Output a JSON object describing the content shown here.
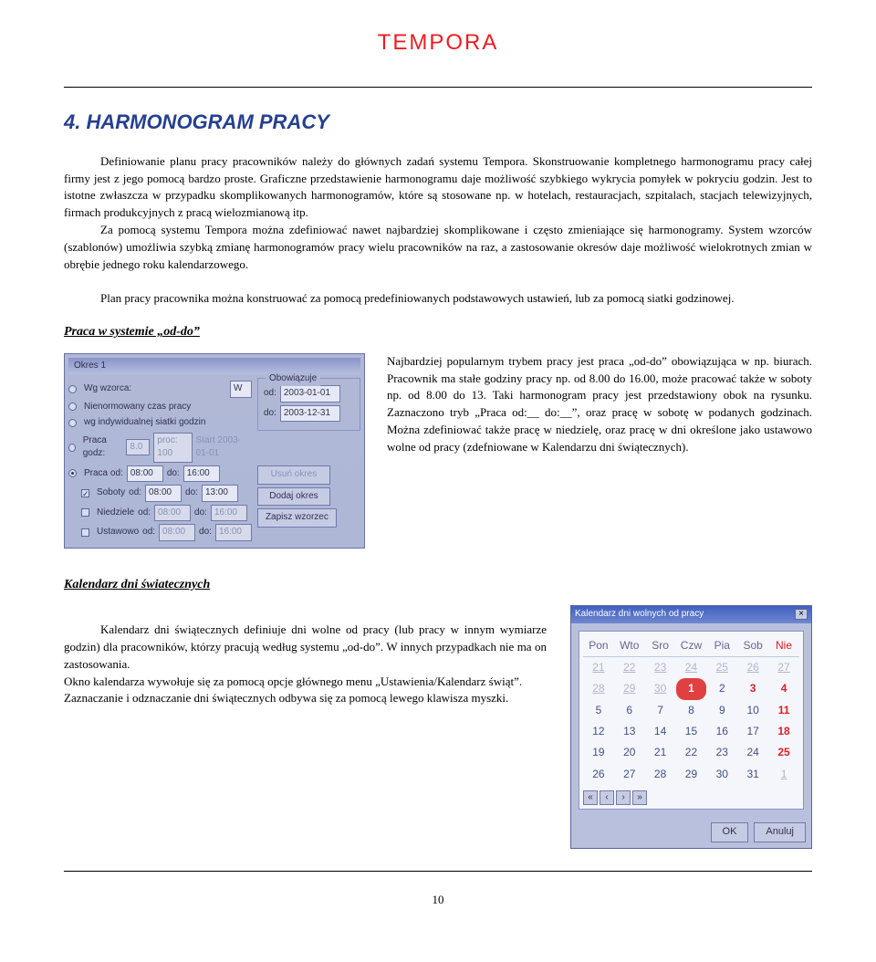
{
  "doc_title": "TEMPORA",
  "section_title": "4. HARMONOGRAM PRACY",
  "paragraphs": {
    "p1a": "Definiowanie planu pracy pracowników  należy do głównych zadań systemu Tempora. Skonstruowanie kompletnego harmonogramu pracy całej firmy jest z jego pomocą bardzo proste. Graficzne przedstawienie harmonogramu daje możliwość szybkiego wykrycia pomyłek w  pokryciu godzin. Jest to istotne zwłaszcza w przypadku skomplikowanych harmonogramów, które są stosowane np. w hotelach, restauracjach, szpitalach, stacjach telewizyjnych, firmach produkcyjnych z pracą wielozmianową itp.",
    "p1b": "Za pomocą systemu Tempora można zdefiniować nawet najbardziej skomplikowane i często zmieniające się harmonogramy. System wzorców (szablonów) umożliwia szybką zmianę harmonogramów pracy wielu pracowników na raz, a zastosowanie okresów daje możliwość wielokrotnych zmian w obrębie jednego roku kalendarzowego.",
    "p1c": "Plan pracy pracownika można konstruować za pomocą predefiniowanych podstawowych ustawień, lub za pomocą siatki godzinowej."
  },
  "subheads": {
    "s1": "Praca w systemie „od-do”",
    "s2": "Kalendarz dni światecznych"
  },
  "right_text": "Najbardziej popularnym trybem pracy jest praca „od-do” obowiązująca w np. biurach. Pracownik ma stałe godziny pracy np. od 8.00 do 16.00, może pracować także w soboty np. od 8.00 do 13. Taki harmonogram pracy jest przedstawiony obok na rysunku. Zaznaczono tryb „Praca od:__ do:__”, oraz pracę w sobotę w podanych godzinach. Można zdefiniować także pracę w niedzielę, oraz pracę w dni określone jako ustawowo wolne od pracy (zdefniowane w Kalendarzu dni świątecznych).",
  "cal_text": {
    "p1": "Kalendarz dni świątecznych definiuje dni wolne od pracy (lub pracy w innym wymiarze godzin) dla pracowników, którzy pracują według systemu „od-do”. W innych przypadkach nie ma on zastosowania.",
    "p2": "Okno kalendarza wywołuje się za pomocą opcje głównego menu „Ustawienia/Kalendarz świąt”.",
    "p3": "Zaznaczanie i odznaczanie dni świątecznych odbywa się za pomocą lewego klawisza myszki."
  },
  "page_num": "10",
  "panel": {
    "title": "Okres 1",
    "group_label": "Obowiązuje",
    "opt1": "Wg wzorca:",
    "opt1_select": "W",
    "opt2": "Nienormowany czas pracy",
    "opt3": "wg indywidualnej siatki godzin",
    "opt4": "Praca godz:",
    "opt4_val": "8.0",
    "opt4_proc": "proc: 100",
    "opt4_start": "Start 2003-01-01",
    "opt5": "Praca od:",
    "opt5_od": "08:00",
    "opt5_do": "16:00",
    "sob": "Soboty",
    "sob_od": "08:00",
    "sob_do": "13:00",
    "nie": "Niedziele",
    "nie_od": "08:00",
    "nie_do": "16:00",
    "ust": "Ustawowo",
    "ust_od": "08:00",
    "ust_do": "16:00",
    "od_label": "od:",
    "do_label": "do:",
    "date_from": "2003-01-01",
    "date_to": "2003-12-31",
    "btn_del": "Usuń okres",
    "btn_add": "Dodaj okres",
    "btn_save": "Zapisz wzorzec"
  },
  "calendar": {
    "title": "Kalendarz dni wolnych od pracy",
    "days": [
      "Pon",
      "Wto",
      "Sro",
      "Czw",
      "Pia",
      "Sob",
      "Nie"
    ],
    "rows": [
      [
        {
          "n": "21",
          "c": "past"
        },
        {
          "n": "22",
          "c": "past"
        },
        {
          "n": "23",
          "c": "past"
        },
        {
          "n": "24",
          "c": "past"
        },
        {
          "n": "25",
          "c": "past"
        },
        {
          "n": "26",
          "c": "past"
        },
        {
          "n": "27",
          "c": "past"
        }
      ],
      [
        {
          "n": "28",
          "c": "past"
        },
        {
          "n": "29",
          "c": "past"
        },
        {
          "n": "30",
          "c": "past"
        },
        {
          "n": "1",
          "c": "marked"
        },
        {
          "n": "2",
          "c": ""
        },
        {
          "n": "3",
          "c": "holiday"
        },
        {
          "n": "4",
          "c": "holiday"
        }
      ],
      [
        {
          "n": "5",
          "c": ""
        },
        {
          "n": "6",
          "c": ""
        },
        {
          "n": "7",
          "c": ""
        },
        {
          "n": "8",
          "c": ""
        },
        {
          "n": "9",
          "c": ""
        },
        {
          "n": "10",
          "c": ""
        },
        {
          "n": "11",
          "c": "holiday"
        }
      ],
      [
        {
          "n": "12",
          "c": ""
        },
        {
          "n": "13",
          "c": ""
        },
        {
          "n": "14",
          "c": ""
        },
        {
          "n": "15",
          "c": ""
        },
        {
          "n": "16",
          "c": ""
        },
        {
          "n": "17",
          "c": ""
        },
        {
          "n": "18",
          "c": "holiday"
        }
      ],
      [
        {
          "n": "19",
          "c": ""
        },
        {
          "n": "20",
          "c": ""
        },
        {
          "n": "21",
          "c": ""
        },
        {
          "n": "22",
          "c": ""
        },
        {
          "n": "23",
          "c": ""
        },
        {
          "n": "24",
          "c": ""
        },
        {
          "n": "25",
          "c": "holiday"
        }
      ],
      [
        {
          "n": "26",
          "c": ""
        },
        {
          "n": "27",
          "c": ""
        },
        {
          "n": "28",
          "c": ""
        },
        {
          "n": "29",
          "c": ""
        },
        {
          "n": "30",
          "c": ""
        },
        {
          "n": "31",
          "c": ""
        },
        {
          "n": "1",
          "c": "past"
        }
      ]
    ],
    "nav": [
      "«",
      "‹",
      "›",
      "»"
    ],
    "btn_ok": "OK",
    "btn_cancel": "Anuluj"
  }
}
